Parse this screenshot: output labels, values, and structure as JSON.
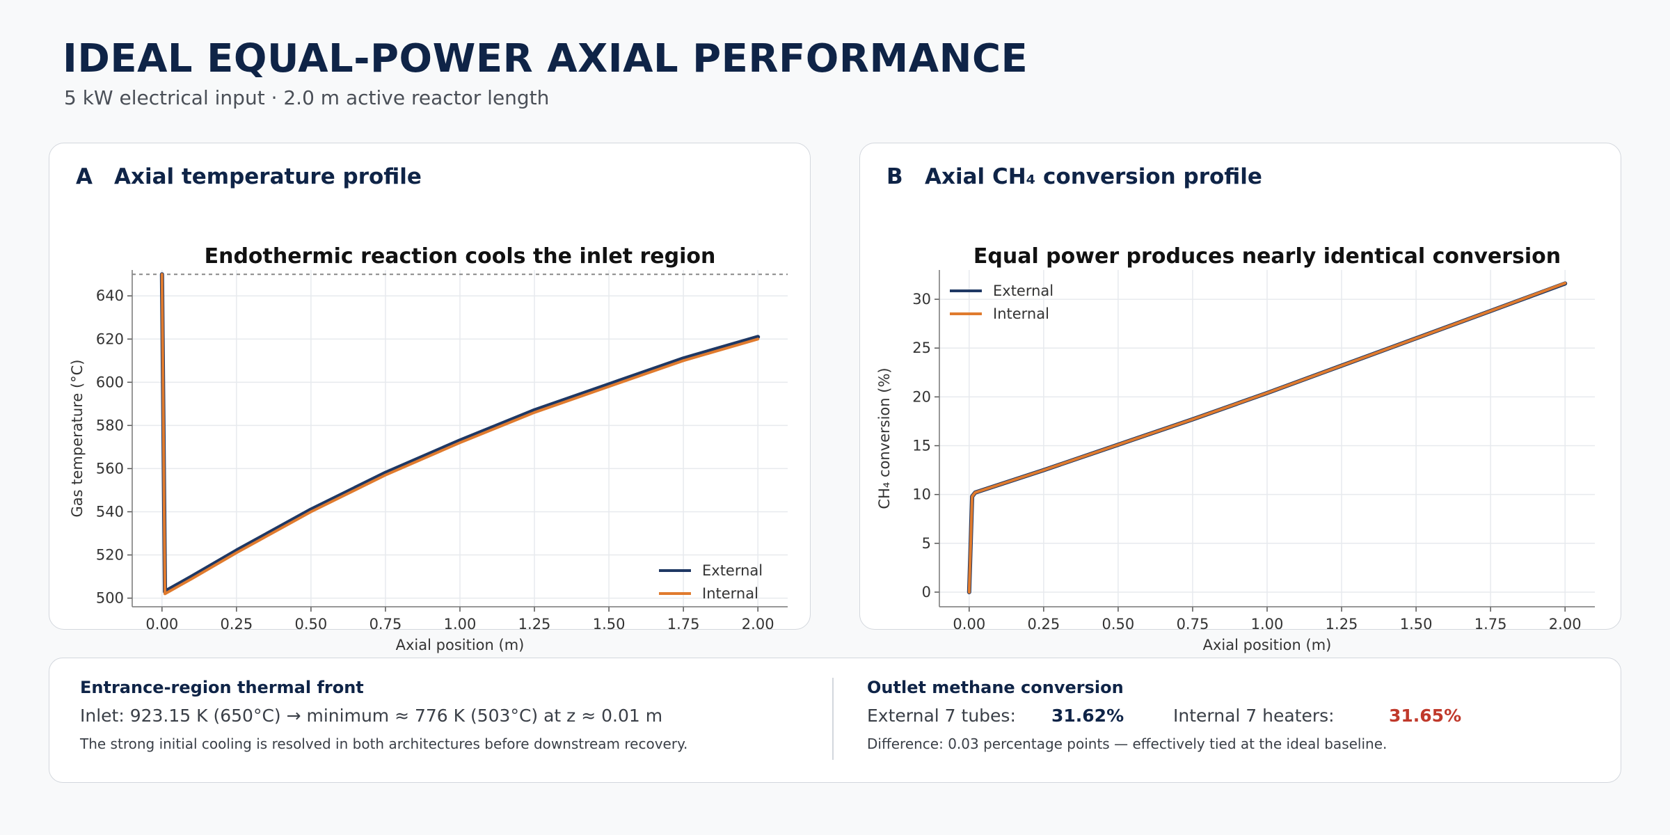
{
  "header": {
    "title": "IDEAL EQUAL-POWER AXIAL PERFORMANCE",
    "subtitle": "5 kW electrical input · 2.0 m active reactor length"
  },
  "panels": [
    {
      "letter": "A",
      "title": "Axial temperature profile"
    },
    {
      "letter": "B",
      "title": "Axial CH₄ conversion profile"
    }
  ],
  "colors": {
    "external": "#1f3864",
    "internal": "#e07b2e",
    "accent_red": "#c0392b",
    "title_navy": "#0f2447"
  },
  "chart_data": [
    {
      "type": "line",
      "title": "Endothermic reaction cools the inlet region",
      "xlabel": "Axial position (m)",
      "ylabel": "Gas temperature (°C)",
      "xlim": [
        -0.1,
        2.1
      ],
      "ylim": [
        496,
        652
      ],
      "xticks": [
        "0.00",
        "0.25",
        "0.50",
        "0.75",
        "1.00",
        "1.25",
        "1.50",
        "1.75",
        "2.00"
      ],
      "yticks": [
        "500",
        "520",
        "540",
        "560",
        "580",
        "600",
        "620",
        "640"
      ],
      "grid": true,
      "legend_position": "bottom-right",
      "reference_line": {
        "y": 650,
        "style": "dashed"
      },
      "series": [
        {
          "name": "External",
          "color": "#1f3864",
          "x": [
            0,
            0.01,
            0.1,
            0.25,
            0.5,
            0.75,
            1.0,
            1.25,
            1.5,
            1.75,
            2.0
          ],
          "y": [
            650,
            503,
            510,
            522,
            541,
            558,
            573,
            587,
            599,
            611,
            621
          ]
        },
        {
          "name": "Internal",
          "color": "#e07b2e",
          "x": [
            0,
            0.01,
            0.1,
            0.25,
            0.5,
            0.75,
            1.0,
            1.25,
            1.5,
            1.75,
            2.0
          ],
          "y": [
            650,
            502,
            509,
            521,
            540,
            557,
            572,
            586,
            598,
            610,
            620
          ]
        }
      ]
    },
    {
      "type": "line",
      "title": "Equal power produces nearly identical conversion",
      "xlabel": "Axial position (m)",
      "ylabel": "CH₄ conversion (%)",
      "xlim": [
        -0.1,
        2.1
      ],
      "ylim": [
        -1.5,
        33
      ],
      "xticks": [
        "0.00",
        "0.25",
        "0.50",
        "0.75",
        "1.00",
        "1.25",
        "1.50",
        "1.75",
        "2.00"
      ],
      "yticks": [
        "0",
        "5",
        "10",
        "15",
        "20",
        "25",
        "30"
      ],
      "grid": true,
      "legend_position": "top-left",
      "series": [
        {
          "name": "External",
          "color": "#1f3864",
          "x": [
            0,
            0.01,
            0.02,
            0.25,
            0.5,
            0.75,
            1.0,
            1.25,
            1.5,
            1.75,
            2.0
          ],
          "y": [
            0,
            9.8,
            10.2,
            12.5,
            15.1,
            17.7,
            20.4,
            23.2,
            26.0,
            28.8,
            31.62
          ]
        },
        {
          "name": "Internal",
          "color": "#e07b2e",
          "x": [
            0,
            0.01,
            0.02,
            0.25,
            0.5,
            0.75,
            1.0,
            1.25,
            1.5,
            1.75,
            2.0
          ],
          "y": [
            0,
            9.8,
            10.2,
            12.5,
            15.1,
            17.7,
            20.4,
            23.2,
            26.0,
            28.8,
            31.65
          ]
        }
      ]
    }
  ],
  "summary": {
    "left": {
      "heading": "Entrance-region thermal front",
      "line": "Inlet: 923.15 K (650°C)  →  minimum ≈ 776 K (503°C) at z ≈ 0.01 m",
      "note": "The strong initial cooling is resolved in both architectures before downstream recovery."
    },
    "right": {
      "heading": "Outlet methane conversion",
      "external_label": "External 7 tubes:",
      "external_value": "31.62%",
      "internal_label": "Internal 7 heaters:",
      "internal_value": "31.65%",
      "note": "Difference: 0.03 percentage points — effectively tied at the ideal baseline."
    }
  }
}
